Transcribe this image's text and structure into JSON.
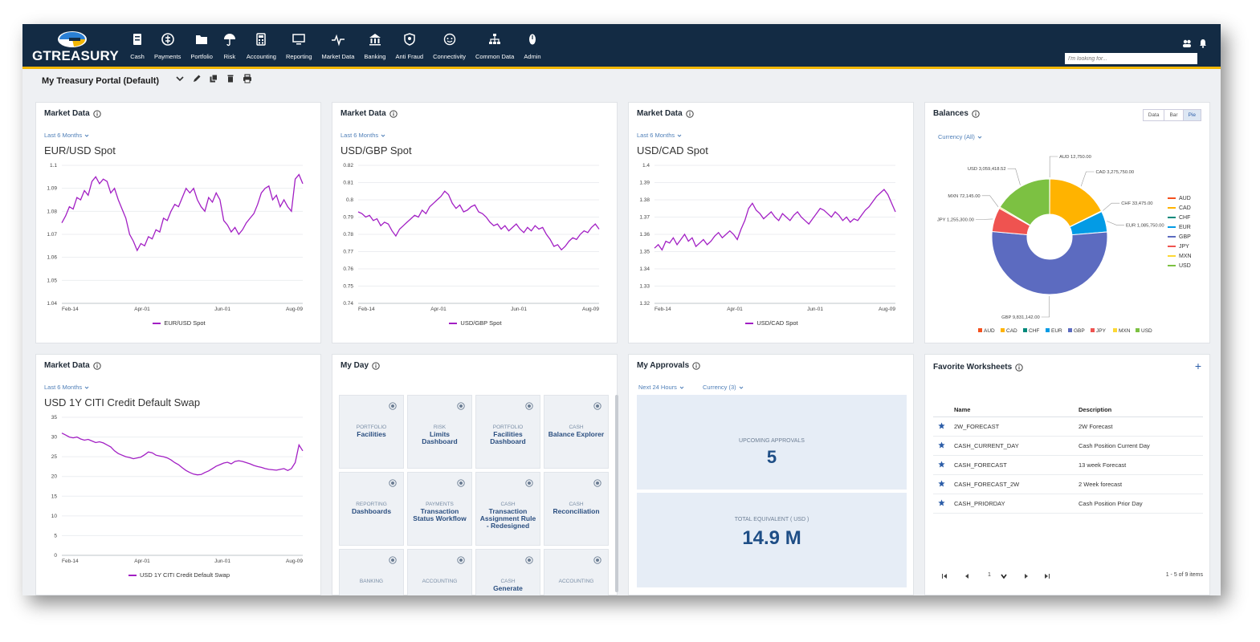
{
  "app": {
    "logo_text": "GTREASURY",
    "search_placeholder": "I'm looking for...",
    "nav": [
      {
        "label": "Cash",
        "icon": "cash-icon"
      },
      {
        "label": "Payments",
        "icon": "payments-icon"
      },
      {
        "label": "Portfolio",
        "icon": "folder-icon"
      },
      {
        "label": "Risk",
        "icon": "umbrella-icon"
      },
      {
        "label": "Accounting",
        "icon": "calculator-icon"
      },
      {
        "label": "Reporting",
        "icon": "monitor-icon"
      },
      {
        "label": "Market Data",
        "icon": "pulse-icon"
      },
      {
        "label": "Banking",
        "icon": "bank-icon"
      },
      {
        "label": "Anti Fraud",
        "icon": "shield-icon"
      },
      {
        "label": "Connectivity",
        "icon": "connectivity-icon"
      },
      {
        "label": "Common Data",
        "icon": "hierarchy-icon"
      },
      {
        "label": "Admin",
        "icon": "admin-icon"
      }
    ]
  },
  "portal": {
    "title": "My Treasury Portal (Default)"
  },
  "colors": {
    "navy": "#132b44",
    "accent": "#f2b705",
    "line": "#a21fc4",
    "link": "#4f7fb8"
  },
  "market_panels": [
    {
      "title": "Market Data",
      "filter": "Last 6 Months",
      "chart_title": "EUR/USD Spot",
      "legend": "EUR/USD Spot",
      "chart_data": {
        "type": "line",
        "x_ticks": [
          "Feb-14",
          "Apr-01",
          "Jun-01",
          "Aug-09"
        ],
        "y_ticks": [
          "1.1",
          "1.09",
          "1.08",
          "1.07",
          "1.06",
          "1.05",
          "1.04"
        ],
        "ylim": [
          1.04,
          1.1
        ],
        "series": [
          {
            "name": "EUR/USD Spot",
            "values": [
              1.075,
              1.078,
              1.082,
              1.081,
              1.086,
              1.085,
              1.089,
              1.087,
              1.093,
              1.095,
              1.092,
              1.094,
              1.093,
              1.088,
              1.09,
              1.085,
              1.081,
              1.077,
              1.07,
              1.067,
              1.063,
              1.066,
              1.065,
              1.069,
              1.068,
              1.072,
              1.071,
              1.077,
              1.076,
              1.08,
              1.083,
              1.082,
              1.086,
              1.09,
              1.088,
              1.09,
              1.085,
              1.082,
              1.08,
              1.086,
              1.084,
              1.088,
              1.085,
              1.076,
              1.074,
              1.071,
              1.073,
              1.07,
              1.072,
              1.075,
              1.077,
              1.079,
              1.083,
              1.088,
              1.09,
              1.091,
              1.085,
              1.087,
              1.082,
              1.085,
              1.082,
              1.08,
              1.094,
              1.096,
              1.092
            ]
          }
        ]
      }
    },
    {
      "title": "Market Data",
      "filter": "Last 6 Months",
      "chart_title": "USD/GBP Spot",
      "legend": "USD/GBP Spot",
      "chart_data": {
        "type": "line",
        "x_ticks": [
          "Feb-14",
          "Apr-01",
          "Jun-01",
          "Aug-09"
        ],
        "y_ticks": [
          "0.82",
          "0.81",
          "0.8",
          "0.79",
          "0.78",
          "0.77",
          "0.76",
          "0.75",
          "0.74"
        ],
        "ylim": [
          0.74,
          0.82
        ],
        "series": [
          {
            "name": "USD/GBP Spot",
            "values": [
              0.793,
              0.792,
              0.79,
              0.791,
              0.788,
              0.789,
              0.785,
              0.787,
              0.786,
              0.782,
              0.779,
              0.783,
              0.785,
              0.787,
              0.789,
              0.791,
              0.79,
              0.794,
              0.792,
              0.796,
              0.798,
              0.8,
              0.802,
              0.805,
              0.803,
              0.798,
              0.795,
              0.797,
              0.793,
              0.794,
              0.796,
              0.797,
              0.793,
              0.792,
              0.79,
              0.787,
              0.785,
              0.786,
              0.783,
              0.785,
              0.782,
              0.784,
              0.786,
              0.783,
              0.781,
              0.784,
              0.782,
              0.785,
              0.783,
              0.784,
              0.78,
              0.777,
              0.773,
              0.774,
              0.771,
              0.773,
              0.776,
              0.778,
              0.777,
              0.78,
              0.782,
              0.781,
              0.784,
              0.786,
              0.783
            ]
          }
        ]
      }
    },
    {
      "title": "Market Data",
      "filter": "Last 6 Months",
      "chart_title": "USD/CAD Spot",
      "legend": "USD/CAD Spot",
      "chart_data": {
        "type": "line",
        "x_ticks": [
          "Feb-14",
          "Apr-01",
          "Jun-01",
          "Aug-09"
        ],
        "y_ticks": [
          "1.4",
          "1.39",
          "1.38",
          "1.37",
          "1.36",
          "1.35",
          "1.34",
          "1.33",
          "1.32"
        ],
        "ylim": [
          1.32,
          1.4
        ],
        "series": [
          {
            "name": "USD/CAD Spot",
            "values": [
              1.352,
              1.354,
              1.351,
              1.356,
              1.355,
              1.358,
              1.354,
              1.357,
              1.36,
              1.356,
              1.358,
              1.353,
              1.355,
              1.357,
              1.354,
              1.356,
              1.359,
              1.361,
              1.358,
              1.36,
              1.362,
              1.36,
              1.357,
              1.363,
              1.368,
              1.375,
              1.378,
              1.374,
              1.372,
              1.369,
              1.371,
              1.373,
              1.37,
              1.368,
              1.372,
              1.37,
              1.368,
              1.371,
              1.373,
              1.37,
              1.368,
              1.366,
              1.369,
              1.372,
              1.375,
              1.374,
              1.372,
              1.37,
              1.373,
              1.371,
              1.368,
              1.37,
              1.367,
              1.369,
              1.368,
              1.371,
              1.374,
              1.376,
              1.379,
              1.382,
              1.384,
              1.386,
              1.383,
              1.378,
              1.373
            ]
          }
        ]
      }
    },
    {
      "title": "Market Data",
      "filter": "Last 6 Months",
      "chart_title": "USD 1Y CITI Credit Default Swap",
      "legend": "USD 1Y CITI Credit Default Swap",
      "chart_data": {
        "type": "line",
        "x_ticks": [
          "Feb-14",
          "Apr-01",
          "Jun-01",
          "Aug-09"
        ],
        "y_ticks": [
          "35",
          "30",
          "25",
          "20",
          "15",
          "10",
          "5",
          "0"
        ],
        "ylim": [
          0,
          35
        ],
        "series": [
          {
            "name": "USD 1Y CITI Credit Default Swap",
            "values": [
              31,
              30.5,
              30,
              29.8,
              30,
              29.5,
              29.2,
              29.4,
              29,
              28.6,
              28.8,
              28.5,
              28,
              27.5,
              26.5,
              25.8,
              25.4,
              25,
              24.8,
              24.5,
              24.7,
              24.9,
              25.5,
              26.2,
              26,
              25.4,
              25.2,
              25,
              24.7,
              24.2,
              23.5,
              23,
              22.2,
              21.5,
              21,
              20.6,
              20.4,
              20.5,
              21,
              21.4,
              22,
              22.6,
              23,
              23.4,
              23.6,
              23.2,
              23.8,
              24,
              23.8,
              23.5,
              23.2,
              22.8,
              22.5,
              22.3,
              22,
              21.8,
              21.7,
              21.6,
              21.8,
              22,
              21.5,
              22,
              23.5,
              28,
              26.5
            ]
          }
        ]
      }
    }
  ],
  "balances": {
    "title": "Balances",
    "filter": "Currency (All)",
    "toggles": [
      "Data",
      "Bar",
      "Pie"
    ],
    "active_toggle": "Pie",
    "chart_data": {
      "type": "pie",
      "slices": [
        {
          "name": "AUD",
          "value": 12750.0,
          "color": "#f4511e",
          "label": "AUD 12,750.00"
        },
        {
          "name": "CAD",
          "value": 3275750.0,
          "color": "#ffb300",
          "label": "CAD 3,275,750.00"
        },
        {
          "name": "CHF",
          "value": 33475.0,
          "color": "#00897b",
          "label": "CHF 33,475.00"
        },
        {
          "name": "EUR",
          "value": 1085750.0,
          "color": "#039be5",
          "label": "EUR 1,085,750.00"
        },
        {
          "name": "GBP",
          "value": 9831142.0,
          "color": "#5c6bc0",
          "label": "GBP 9,831,142.00"
        },
        {
          "name": "JPY",
          "value": 1255300.0,
          "color": "#ef5350",
          "label": "JPY 1,255,300.00"
        },
        {
          "name": "MXN",
          "value": 72145.0,
          "color": "#fdd835",
          "label": "MXN 72,145.00"
        },
        {
          "name": "USD",
          "value": 3059418.52,
          "color": "#7cc142",
          "label": "USD 3,059,418.52"
        }
      ]
    }
  },
  "my_day": {
    "title": "My Day",
    "tiles": [
      {
        "category": "PORTFOLIO",
        "name": "Facilities"
      },
      {
        "category": "RISK",
        "name": "Limits Dashboard"
      },
      {
        "category": "PORTFOLIO",
        "name": "Facilities Dashboard"
      },
      {
        "category": "CASH",
        "name": "Balance Explorer"
      },
      {
        "category": "REPORTING",
        "name": "Dashboards"
      },
      {
        "category": "PAYMENTS",
        "name": "Transaction Status Workflow"
      },
      {
        "category": "CASH",
        "name": "Transaction Assignment Rule - Redesigned"
      },
      {
        "category": "CASH",
        "name": "Reconciliation"
      },
      {
        "category": "BANKING",
        "name": ""
      },
      {
        "category": "ACCOUNTING",
        "name": ""
      },
      {
        "category": "CASH",
        "name": "Generate"
      },
      {
        "category": "ACCOUNTING",
        "name": ""
      }
    ]
  },
  "approvals": {
    "title": "My Approvals",
    "filter_time": "Next 24 Hours",
    "filter_currency": "Currency (3)",
    "upcoming_label": "UPCOMING APPROVALS",
    "upcoming_value": "5",
    "total_label": "TOTAL EQUIVALENT ( USD )",
    "total_value": "14.9 M"
  },
  "worksheets": {
    "title": "Favorite Worksheets",
    "columns": [
      "Name",
      "Description"
    ],
    "rows": [
      {
        "name": "2W_FORECAST",
        "description": "2W Forecast"
      },
      {
        "name": "CASH_CURRENT_DAY",
        "description": "Cash Position Current Day"
      },
      {
        "name": "CASH_FORECAST",
        "description": "13 week Forecast"
      },
      {
        "name": "CASH_FORECAST_2W",
        "description": "2 Week forecast"
      },
      {
        "name": "CASH_PRIORDAY",
        "description": "Cash Position Prior Day"
      }
    ],
    "pager_page": "1",
    "pager_summary": "1 - 5 of 9 items"
  }
}
